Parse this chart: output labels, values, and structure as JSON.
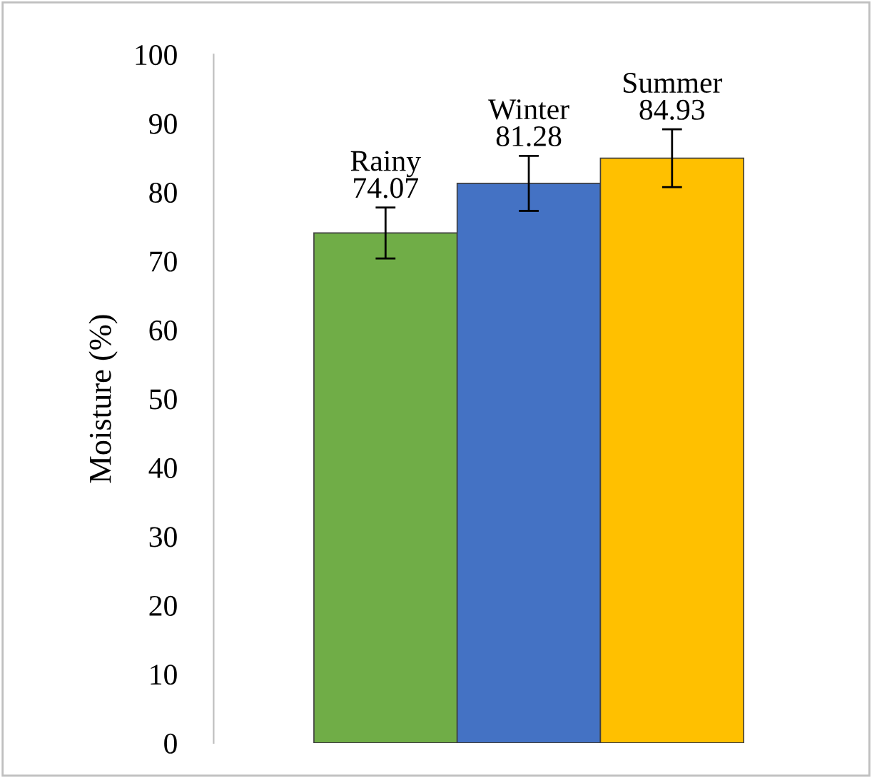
{
  "chart_data": {
    "type": "bar",
    "ylabel": "Moisture (%)",
    "categories": [
      "Rainy",
      "Winter",
      "Summer"
    ],
    "values": [
      74.07,
      81.28,
      84.93
    ],
    "colors": [
      "#70ad47",
      "#4472c4",
      "#ffc000"
    ],
    "errors": [
      3.7,
      4.0,
      4.2
    ],
    "data_labels": true,
    "ylim": [
      0,
      100
    ],
    "yticks": [
      0,
      10,
      20,
      30,
      40,
      50,
      60,
      70,
      80,
      90,
      100
    ],
    "tick_labels": "y",
    "grid": false,
    "legend": false
  }
}
